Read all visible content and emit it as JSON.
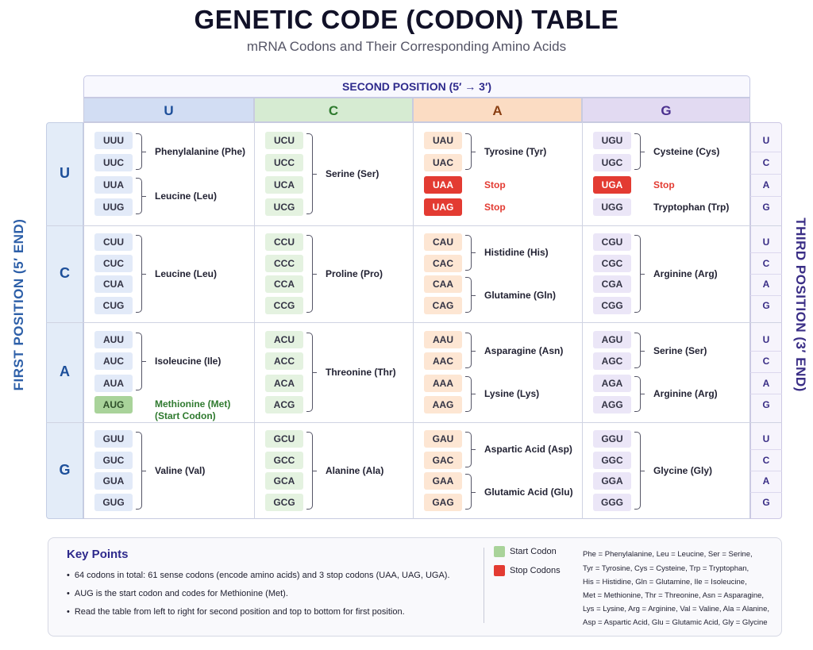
{
  "header": {
    "title": "GENETIC CODE (CODON) TABLE",
    "subtitle": "mRNA Codons and Their Corresponding Amino Acids"
  },
  "axes": {
    "second": "SECOND POSITION (5′ → 3′)",
    "first": "FIRST POSITION (5′ END)",
    "third": "THIRD POSITION (3′ END)",
    "bases": [
      "U",
      "C",
      "A",
      "G"
    ]
  },
  "colors": {
    "stop": "#e33b32",
    "start": "#a9d39a"
  },
  "blocks": [
    {
      "row": "U",
      "col": "U",
      "codons": [
        "UUU",
        "UUC",
        "UUA",
        "UUG"
      ],
      "groups": [
        {
          "from": 0,
          "to": 1,
          "label": "Phenylalanine (Phe)"
        },
        {
          "from": 2,
          "to": 3,
          "label": "Leucine (Leu)"
        }
      ]
    },
    {
      "row": "U",
      "col": "C",
      "codons": [
        "UCU",
        "UCC",
        "UCA",
        "UCG"
      ],
      "groups": [
        {
          "from": 0,
          "to": 3,
          "label": "Serine (Ser)"
        }
      ]
    },
    {
      "row": "U",
      "col": "A",
      "codons": [
        "UAU",
        "UAC",
        "UAA",
        "UAG"
      ],
      "groups": [
        {
          "from": 0,
          "to": 1,
          "label": "Tyrosine (Tyr)"
        },
        {
          "from": 2,
          "to": 2,
          "label": "Stop",
          "type": "stop"
        },
        {
          "from": 3,
          "to": 3,
          "label": "Stop",
          "type": "stop"
        }
      ]
    },
    {
      "row": "U",
      "col": "G",
      "codons": [
        "UGU",
        "UGC",
        "UGA",
        "UGG"
      ],
      "groups": [
        {
          "from": 0,
          "to": 1,
          "label": "Cysteine (Cys)"
        },
        {
          "from": 2,
          "to": 2,
          "label": "Stop",
          "type": "stop"
        },
        {
          "from": 3,
          "to": 3,
          "label": "Tryptophan (Trp)",
          "type": "single"
        }
      ]
    },
    {
      "row": "C",
      "col": "U",
      "codons": [
        "CUU",
        "CUC",
        "CUA",
        "CUG"
      ],
      "groups": [
        {
          "from": 0,
          "to": 3,
          "label": "Leucine (Leu)"
        }
      ]
    },
    {
      "row": "C",
      "col": "C",
      "codons": [
        "CCU",
        "CCC",
        "CCA",
        "CCG"
      ],
      "groups": [
        {
          "from": 0,
          "to": 3,
          "label": "Proline (Pro)"
        }
      ]
    },
    {
      "row": "C",
      "col": "A",
      "codons": [
        "CAU",
        "CAC",
        "CAA",
        "CAG"
      ],
      "groups": [
        {
          "from": 0,
          "to": 1,
          "label": "Histidine (His)"
        },
        {
          "from": 2,
          "to": 3,
          "label": "Glutamine (Gln)"
        }
      ]
    },
    {
      "row": "C",
      "col": "G",
      "codons": [
        "CGU",
        "CGC",
        "CGA",
        "CGG"
      ],
      "groups": [
        {
          "from": 0,
          "to": 3,
          "label": "Arginine (Arg)"
        }
      ]
    },
    {
      "row": "A",
      "col": "U",
      "codons": [
        "AUU",
        "AUC",
        "AUA",
        "AUG"
      ],
      "groups": [
        {
          "from": 0,
          "to": 2,
          "label": "Isoleucine (Ile)"
        },
        {
          "from": 3,
          "to": 3,
          "label": "Methionine (Met)",
          "label2": "(Start Codon)",
          "type": "start"
        }
      ]
    },
    {
      "row": "A",
      "col": "C",
      "codons": [
        "ACU",
        "ACC",
        "ACA",
        "ACG"
      ],
      "groups": [
        {
          "from": 0,
          "to": 3,
          "label": "Threonine (Thr)"
        }
      ]
    },
    {
      "row": "A",
      "col": "A",
      "codons": [
        "AAU",
        "AAC",
        "AAA",
        "AAG"
      ],
      "groups": [
        {
          "from": 0,
          "to": 1,
          "label": "Asparagine (Asn)"
        },
        {
          "from": 2,
          "to": 3,
          "label": "Lysine (Lys)"
        }
      ]
    },
    {
      "row": "A",
      "col": "G",
      "codons": [
        "AGU",
        "AGC",
        "AGA",
        "AGG"
      ],
      "groups": [
        {
          "from": 0,
          "to": 1,
          "label": "Serine (Ser)"
        },
        {
          "from": 2,
          "to": 3,
          "label": "Arginine (Arg)"
        }
      ]
    },
    {
      "row": "G",
      "col": "U",
      "codons": [
        "GUU",
        "GUC",
        "GUA",
        "GUG"
      ],
      "groups": [
        {
          "from": 0,
          "to": 3,
          "label": "Valine (Val)"
        }
      ]
    },
    {
      "row": "G",
      "col": "C",
      "codons": [
        "GCU",
        "GCC",
        "GCA",
        "GCG"
      ],
      "groups": [
        {
          "from": 0,
          "to": 3,
          "label": "Alanine (Ala)"
        }
      ]
    },
    {
      "row": "G",
      "col": "A",
      "codons": [
        "GAU",
        "GAC",
        "GAA",
        "GAG"
      ],
      "groups": [
        {
          "from": 0,
          "to": 1,
          "label": "Aspartic Acid (Asp)"
        },
        {
          "from": 2,
          "to": 3,
          "label": "Glutamic Acid (Glu)"
        }
      ]
    },
    {
      "row": "G",
      "col": "G",
      "codons": [
        "GGU",
        "GGC",
        "GGA",
        "GGG"
      ],
      "groups": [
        {
          "from": 0,
          "to": 3,
          "label": "Glycine (Gly)"
        }
      ]
    }
  ],
  "key_points": {
    "title": "Key Points",
    "items": [
      "64 codons in total: 61 sense codons (encode amino acids) and 3 stop codons (UAA, UAG, UGA).",
      "AUG is the start codon and codes for Methionine (Met).",
      "Read the table from left to right for second position and top to bottom for first position."
    ]
  },
  "legend": {
    "start": "Start Codon",
    "stop": "Stop Codons"
  },
  "abbreviations": [
    "Phe = Phenylalanine, Leu = Leucine, Ser = Serine,",
    "Tyr = Tyrosine, Cys = Cysteine, Trp = Tryptophan,",
    "His = Histidine, Gln = Glutamine, Ile = Isoleucine,",
    "Met = Methionine, Thr = Threonine, Asn = Asparagine,",
    "Lys = Lysine, Arg = Arginine, Val = Valine, Ala = Alanine,",
    "Asp = Aspartic Acid, Glu = Glutamic Acid, Gly = Glycine"
  ]
}
